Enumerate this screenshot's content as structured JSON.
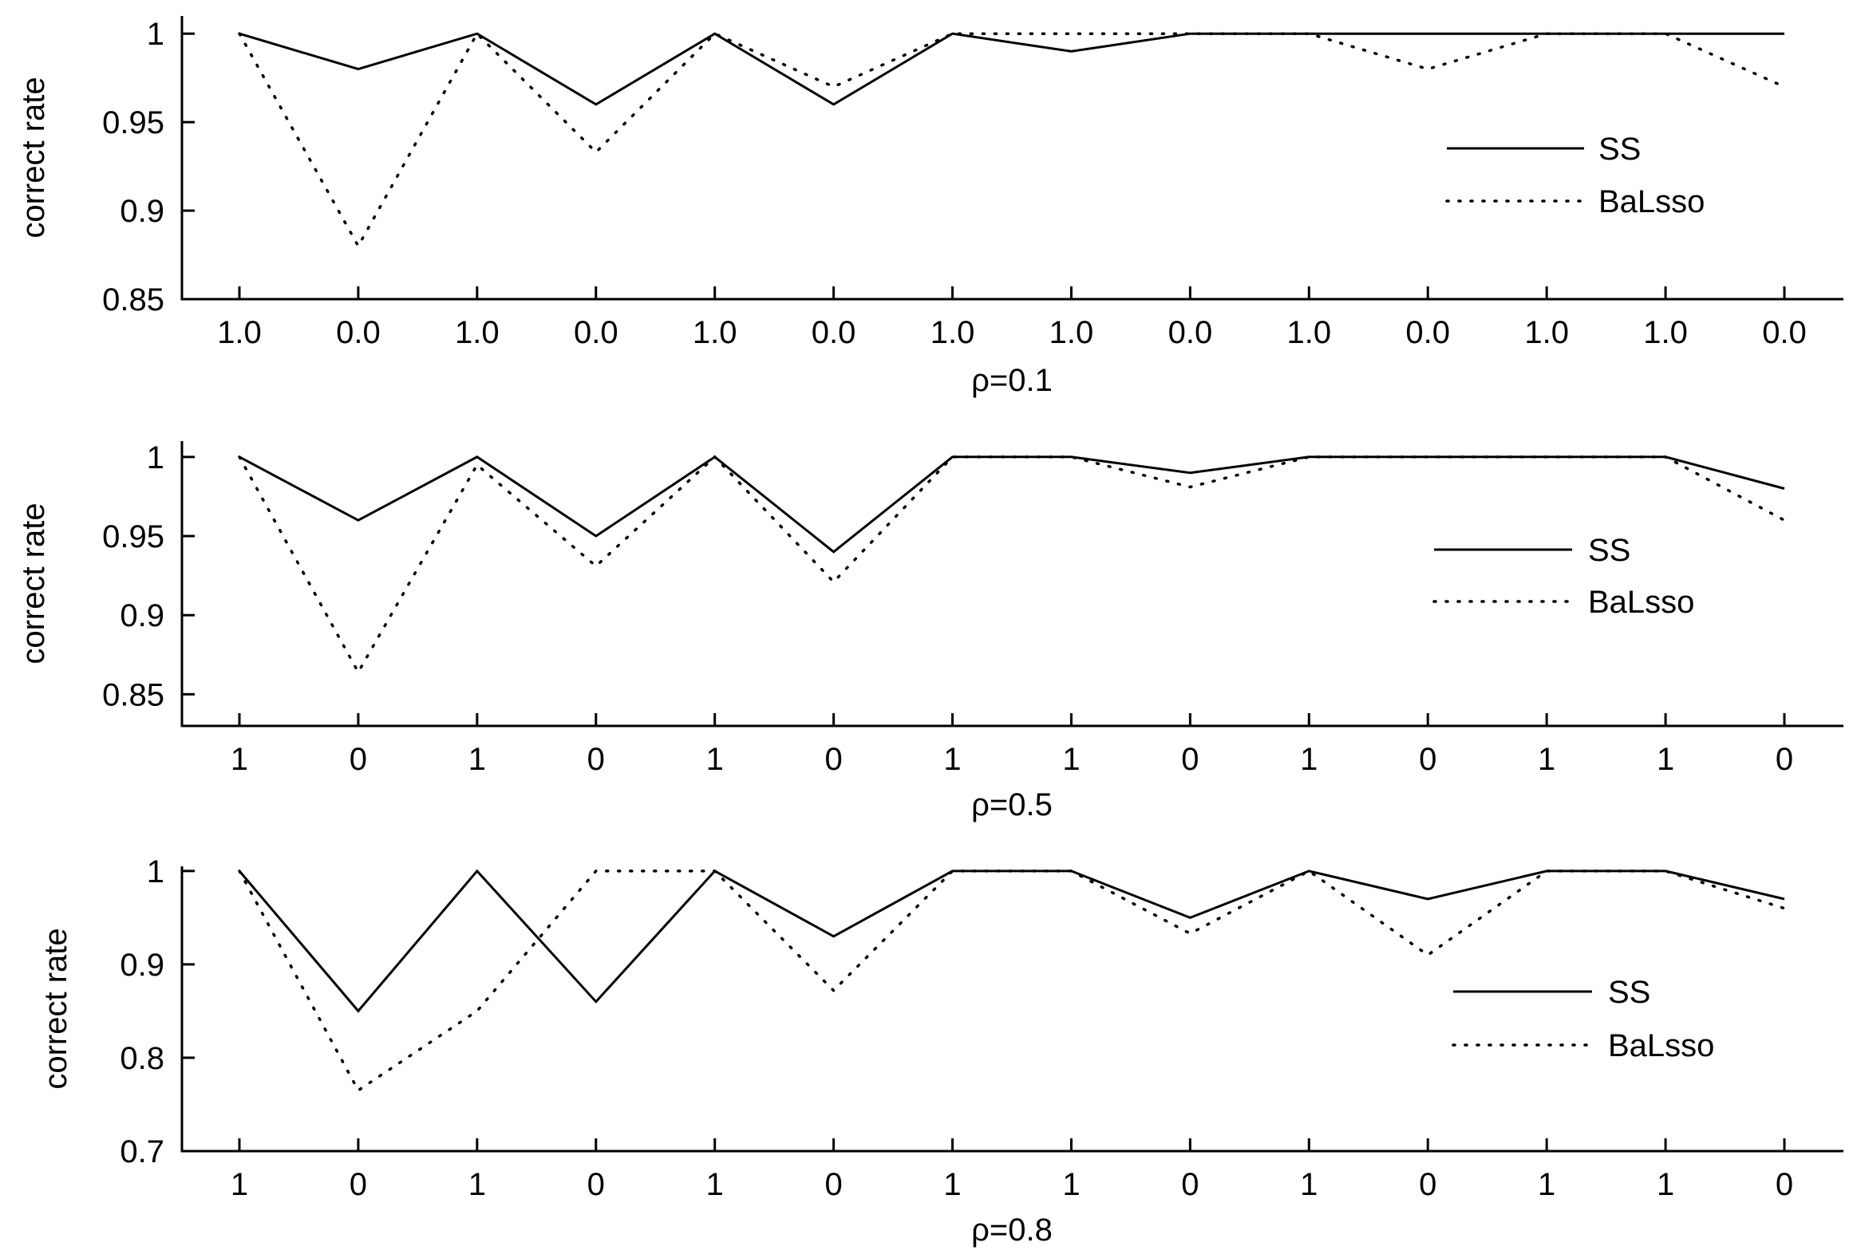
{
  "chart_data": [
    {
      "type": "line",
      "categories": [
        "1.0",
        "0.0",
        "1.0",
        "0.0",
        "1.0",
        "0.0",
        "1.0",
        "1.0",
        "0.0",
        "1.0",
        "0.0",
        "1.0",
        "1.0",
        "0.0"
      ],
      "xlabel": "ρ=0.1",
      "ylabel": "correct rate",
      "ylim": [
        0.85,
        1.01
      ],
      "yticks": [
        0.85,
        0.9,
        0.95,
        1
      ],
      "ytick_labels": [
        "0.85",
        "0.9",
        "0.95",
        "1"
      ],
      "grid": false,
      "legend_position": "right",
      "series": [
        {
          "name": "SS",
          "style": "solid",
          "values": [
            1,
            0.98,
            1,
            0.96,
            1,
            0.96,
            1,
            0.99,
            1,
            1,
            1,
            1,
            1,
            1
          ]
        },
        {
          "name": "BaLsso",
          "style": "dotted",
          "values": [
            1,
            0.88,
            1,
            0.933,
            1,
            0.97,
            1,
            1,
            1,
            1,
            0.98,
            1,
            1,
            0.97
          ]
        }
      ]
    },
    {
      "type": "line",
      "categories": [
        "1",
        "0",
        "1",
        "0",
        "1",
        "0",
        "1",
        "1",
        "0",
        "1",
        "0",
        "1",
        "1",
        "0"
      ],
      "xlabel": "ρ=0.5",
      "ylabel": "correct rate",
      "ylim": [
        0.83,
        1.01
      ],
      "yticks": [
        0.85,
        0.9,
        0.95,
        1
      ],
      "ytick_labels": [
        "0.85",
        "0.9",
        "0.95",
        "1"
      ],
      "grid": false,
      "legend_position": "right",
      "series": [
        {
          "name": "SS",
          "style": "solid",
          "values": [
            1,
            0.96,
            1,
            0.95,
            1,
            0.94,
            1,
            1,
            0.99,
            1,
            1,
            1,
            1,
            0.98
          ]
        },
        {
          "name": "BaLsso",
          "style": "dotted",
          "values": [
            1,
            0.864,
            0.995,
            0.931,
            1,
            0.921,
            1,
            1,
            0.981,
            1,
            1,
            1,
            1,
            0.96
          ]
        }
      ]
    },
    {
      "type": "line",
      "categories": [
        "1",
        "0",
        "1",
        "0",
        "1",
        "0",
        "1",
        "1",
        "0",
        "1",
        "0",
        "1",
        "1",
        "0"
      ],
      "xlabel": "ρ=0.8",
      "ylabel": "correct rate",
      "ylim": [
        0.7,
        1.005
      ],
      "yticks": [
        0.7,
        0.8,
        0.9,
        1
      ],
      "ytick_labels": [
        "0.7",
        "0.8",
        "0.9",
        "1"
      ],
      "grid": false,
      "legend_position": "right",
      "series": [
        {
          "name": "SS",
          "style": "solid",
          "values": [
            1,
            0.85,
            1,
            0.86,
            1,
            0.93,
            1,
            1,
            0.95,
            1,
            0.97,
            1,
            1,
            0.97
          ]
        },
        {
          "name": "BaLsso",
          "style": "dotted",
          "values": [
            1,
            0.765,
            0.85,
            1,
            1,
            0.872,
            1,
            1,
            0.933,
            1,
            0.91,
            1,
            1,
            0.96
          ]
        }
      ]
    }
  ]
}
